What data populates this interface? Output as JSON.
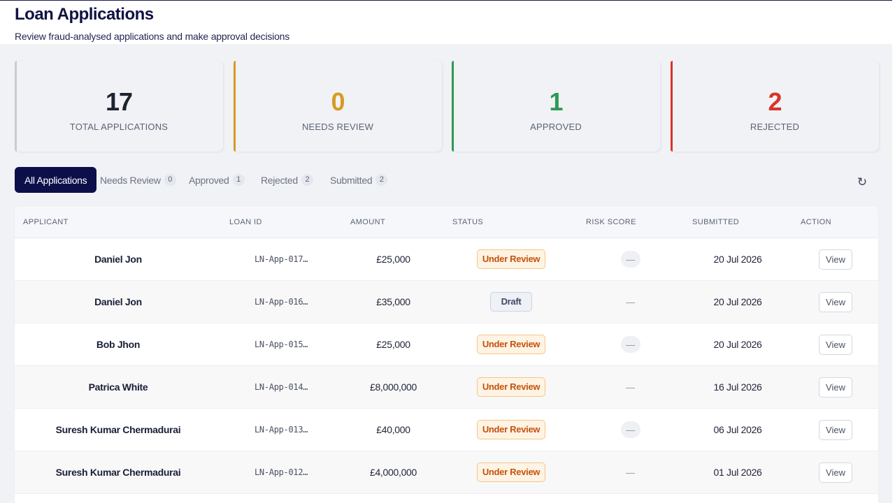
{
  "header": {
    "title": "Loan Applications",
    "subtitle": "Review fraud-analysed applications and make approval decisions"
  },
  "colors": {
    "total": "#c7ccd8",
    "needs_review": "#d99a23",
    "approved": "#2c9a53",
    "rejected": "#d9342b",
    "dark_value": "#1d2233",
    "primary": "#0d0f4a"
  },
  "stats": [
    {
      "value": "17",
      "label": "TOTAL APPLICATIONS"
    },
    {
      "value": "0",
      "label": "NEEDS REVIEW"
    },
    {
      "value": "1",
      "label": "APPROVED"
    },
    {
      "value": "2",
      "label": "REJECTED"
    }
  ],
  "tabs": [
    {
      "label": "All Applications",
      "count": ""
    },
    {
      "label": "Needs Review",
      "count": "0"
    },
    {
      "label": "Approved",
      "count": "1"
    },
    {
      "label": "Rejected",
      "count": "2"
    },
    {
      "label": "Submitted",
      "count": "2"
    }
  ],
  "refresh_icon": "refresh-icon",
  "table": {
    "headers": [
      "APPLICANT",
      "LOAN ID",
      "AMOUNT",
      "STATUS",
      "RISK SCORE",
      "SUBMITTED",
      "ACTION"
    ],
    "rows": [
      {
        "applicant": "Daniel Jon",
        "loan_id": "LN-App-017…",
        "amount": "£25,000",
        "status": "Under Review",
        "risk": "—",
        "submitted": "20 Jul 2026",
        "action": "View"
      },
      {
        "applicant": "Daniel Jon",
        "loan_id": "LN-App-016…",
        "amount": "£35,000",
        "status": "Draft",
        "risk": "—",
        "submitted": "20 Jul 2026",
        "action": "View"
      },
      {
        "applicant": "Bob Jhon",
        "loan_id": "LN-App-015…",
        "amount": "£25,000",
        "status": "Under Review",
        "risk": "—",
        "submitted": "20 Jul 2026",
        "action": "View"
      },
      {
        "applicant": "Patrica White",
        "loan_id": "LN-App-014…",
        "amount": "£8,000,000",
        "status": "Under Review",
        "risk": "—",
        "submitted": "16 Jul 2026",
        "action": "View"
      },
      {
        "applicant": "Suresh Kumar Chermadurai",
        "loan_id": "LN-App-013…",
        "amount": "£40,000",
        "status": "Under Review",
        "risk": "—",
        "submitted": "06 Jul 2026",
        "action": "View"
      },
      {
        "applicant": "Suresh Kumar Chermadurai",
        "loan_id": "LN-App-012…",
        "amount": "£4,000,000",
        "status": "Under Review",
        "risk": "—",
        "submitted": "01 Jul 2026",
        "action": "View"
      }
    ]
  }
}
